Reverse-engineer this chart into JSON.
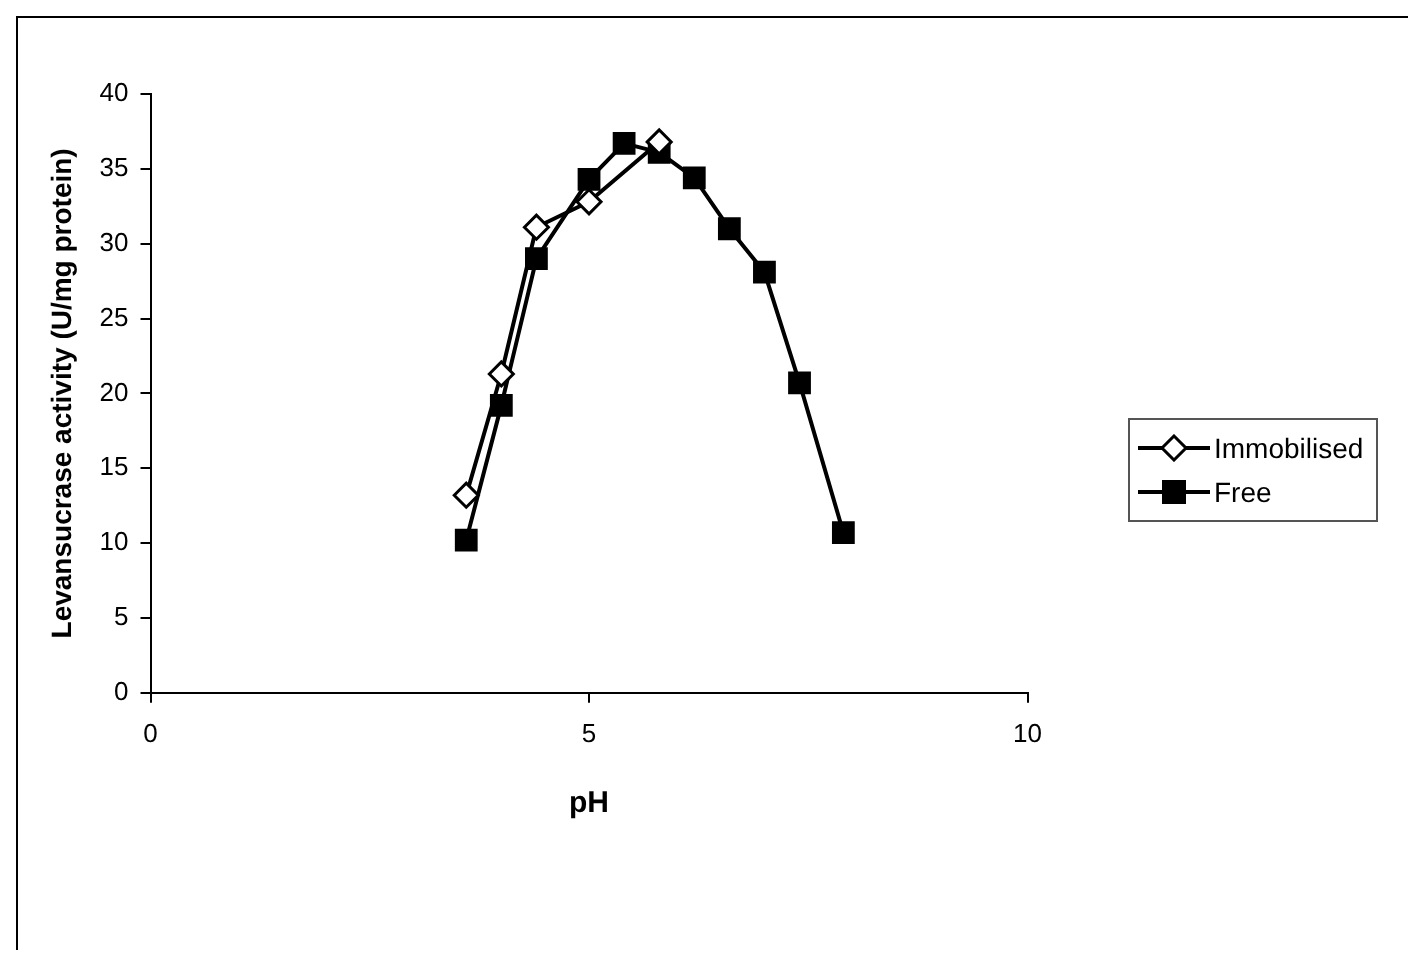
{
  "chart_data": {
    "type": "line",
    "xlabel": "pH",
    "ylabel": "Levansucrase activity (U/mg protein)",
    "xlim": [
      0,
      10
    ],
    "xticks": [
      0,
      5,
      10
    ],
    "ylim": [
      0,
      40
    ],
    "yticks": [
      0,
      5,
      10,
      15,
      20,
      25,
      30,
      35,
      40
    ],
    "grid": false,
    "legend": "right",
    "line_style": "solid",
    "series": [
      {
        "name": "Immobilised",
        "color": "#000000",
        "marker": "diamond",
        "x": [
          3.6,
          4.0,
          4.4,
          5.0,
          5.8
        ],
        "values": [
          13.2,
          21.3,
          31.1,
          32.8,
          36.8
        ]
      },
      {
        "name": "Free",
        "color": "#000000",
        "marker": "square",
        "x": [
          3.6,
          4.0,
          4.4,
          5.0,
          5.4,
          5.8,
          6.2,
          6.6,
          7.0,
          7.4,
          7.9
        ],
        "values": [
          10.2,
          19.2,
          29.0,
          34.3,
          36.7,
          36.1,
          34.4,
          31.0,
          28.1,
          20.7,
          10.7
        ]
      }
    ]
  }
}
